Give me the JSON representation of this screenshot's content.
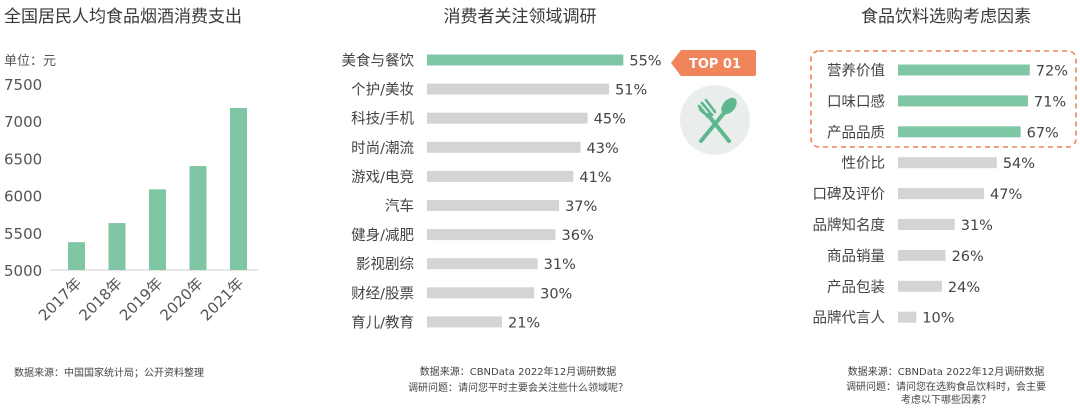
{
  "colors": {
    "highlight": "#7fc6a4",
    "neutral": "#d6d3d3",
    "badge": "#f0845a",
    "icon_circle": "#e9eeec",
    "icon_fg": "#5eb78f",
    "dashed_box": "#f0845a"
  },
  "chart_data": [
    {
      "type": "bar",
      "title": "全国居民人均食品烟酒消费支出",
      "unit_label": "单位：元",
      "categories": [
        "2017年",
        "2018年",
        "2019年",
        "2020年",
        "2021年"
      ],
      "values": [
        5374,
        5631,
        6084,
        6397,
        7178
      ],
      "ylim": [
        5000,
        7500
      ],
      "yticks": [
        5000,
        5500,
        6000,
        6500,
        7000,
        7500
      ],
      "source": "数据来源：中国国家统计局；公开资料整理"
    },
    {
      "type": "bar",
      "orientation": "horizontal",
      "title": "消费者关注领域调研",
      "categories": [
        "美食与餐饮",
        "个护/美妆",
        "科技/手机",
        "时尚/潮流",
        "游戏/电竞",
        "汽车",
        "健身/减肥",
        "影视剧综",
        "财经/股票",
        "育儿/教育"
      ],
      "values": [
        55,
        51,
        45,
        43,
        41,
        37,
        36,
        31,
        30,
        21
      ],
      "value_labels": [
        "55%",
        "51%",
        "45%",
        "43%",
        "41%",
        "37%",
        "36%",
        "31%",
        "30%",
        "21%"
      ],
      "highlight_count": 1,
      "badge": "TOP 01",
      "icon": "fork-spoon-icon",
      "source": "数据来源：CBNData 2022年12月调研数据",
      "question": "调研问题：请问您平时主要会关注些什么领域呢？"
    },
    {
      "type": "bar",
      "orientation": "horizontal",
      "title": "食品饮料选购考虑因素",
      "categories": [
        "营养价值",
        "口味口感",
        "产品品质",
        "性价比",
        "口碑及评价",
        "品牌知名度",
        "商品销量",
        "产品包装",
        "品牌代言人"
      ],
      "values": [
        72,
        71,
        67,
        54,
        47,
        31,
        26,
        24,
        10
      ],
      "value_labels": [
        "72%",
        "71%",
        "67%",
        "54%",
        "47%",
        "31%",
        "26%",
        "24%",
        "10%"
      ],
      "highlight_count": 3,
      "source": "数据来源：CBNData 2022年12月调研数据",
      "question_line1": "调研问题：请问您在选购食品饮料时，会主要",
      "question_line2": "考虑以下哪些因素？"
    }
  ]
}
